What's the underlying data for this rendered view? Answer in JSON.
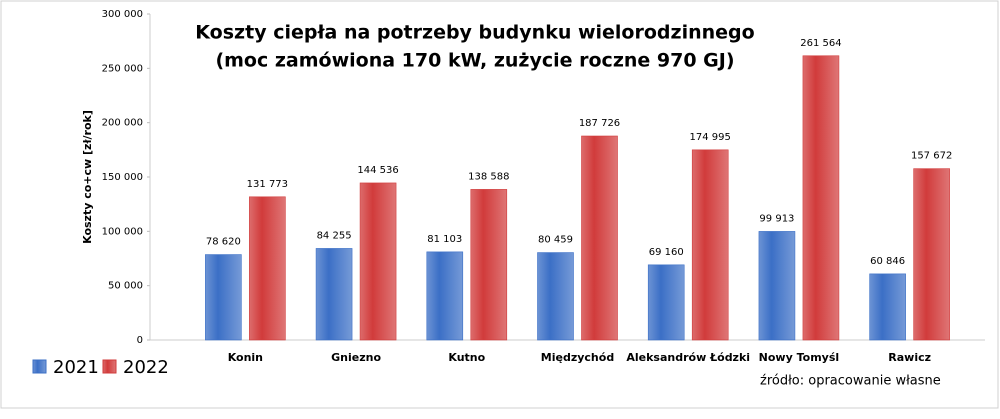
{
  "chart_data": {
    "type": "bar",
    "title": "Koszty ciepła na potrzeby budynku wielorodzinnego",
    "subtitle": "(moc zamówiona 170 kW, zużycie roczne 970 GJ)",
    "y_label": "Koszty co+cw [zł/rok]",
    "source": "źródło: opracowanie własne",
    "categories": [
      "Konin",
      "Gniezno",
      "Kutno",
      "Międzychód",
      "Aleksandrów Łódzki",
      "Nowy Tomyśl",
      "Rawicz"
    ],
    "series": [
      {
        "name": "2021",
        "color": "#3b6fc6",
        "values": [
          78620,
          84255,
          81103,
          80459,
          69160,
          99913,
          60846
        ],
        "value_labels": [
          "78 620",
          "84 255",
          "81 103",
          "80 459",
          "69 160",
          "99 913",
          "60 846"
        ]
      },
      {
        "name": "2022",
        "color": "#d13b3b",
        "values": [
          131773,
          144536,
          138588,
          187726,
          174995,
          261564,
          157672
        ],
        "value_labels": [
          "131 773",
          "144 536",
          "138 588",
          "187 726",
          "174 995",
          "261 564",
          "157 672"
        ]
      }
    ],
    "ylim": [
      0,
      300000
    ],
    "yticks": [
      0,
      {
        "value": 50000,
        "label": "50 000"
      },
      {
        "value": 100000,
        "label": "100 000"
      },
      {
        "value": 150000,
        "label": "150 000"
      },
      {
        "value": 200000,
        "label": "200 000"
      },
      {
        "value": 250000,
        "label": "250 000"
      },
      {
        "value": 300000,
        "label": "300 000"
      }
    ],
    "legend": "bottom-left"
  }
}
